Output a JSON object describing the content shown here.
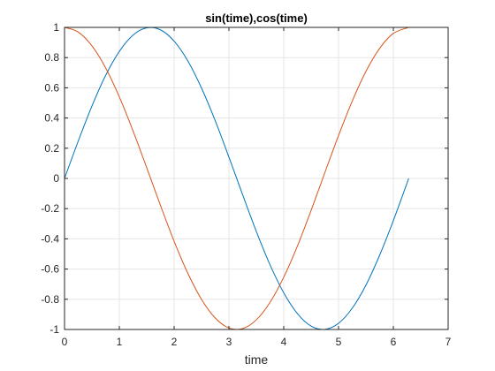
{
  "chart_data": {
    "type": "line",
    "title": "sin(time),cos(time)",
    "xlabel": "time",
    "ylabel": "",
    "xlim": [
      0,
      7
    ],
    "ylim": [
      -1,
      1
    ],
    "grid": true,
    "x_ticks": [
      "0",
      "1",
      "2",
      "3",
      "4",
      "5",
      "6",
      "7"
    ],
    "y_ticks": [
      "1",
      "0.8",
      "0.6",
      "0.4",
      "0.2",
      "0",
      "-0.2",
      "-0.4",
      "-0.6",
      "-0.8",
      "-1"
    ],
    "x": [
      0,
      0.25,
      0.5,
      0.75,
      1,
      1.25,
      1.5,
      1.75,
      2,
      2.25,
      2.5,
      2.75,
      3,
      3.25,
      3.5,
      3.75,
      4,
      4.25,
      4.5,
      4.75,
      5,
      5.25,
      5.5,
      5.75,
      6,
      6.28
    ],
    "series": [
      {
        "color": "#0072BD",
        "values": [
          0,
          0.247,
          0.479,
          0.682,
          0.841,
          0.949,
          0.997,
          0.984,
          0.909,
          0.778,
          0.598,
          0.382,
          0.141,
          -0.108,
          -0.351,
          -0.572,
          -0.757,
          -0.895,
          -0.978,
          -0.999,
          -0.959,
          -0.859,
          -0.706,
          -0.508,
          -0.279,
          0
        ]
      },
      {
        "color": "#D95319",
        "values": [
          1,
          0.969,
          0.878,
          0.732,
          0.54,
          0.315,
          0.071,
          -0.178,
          -0.416,
          -0.628,
          -0.801,
          -0.924,
          -0.99,
          -0.994,
          -0.936,
          -0.82,
          -0.654,
          -0.447,
          -0.211,
          0.038,
          0.284,
          0.512,
          0.709,
          0.861,
          0.96,
          1
        ]
      }
    ]
  },
  "colors": {
    "grid": "#e5e5e5",
    "axis": "#262626",
    "background": "#ffffff"
  }
}
